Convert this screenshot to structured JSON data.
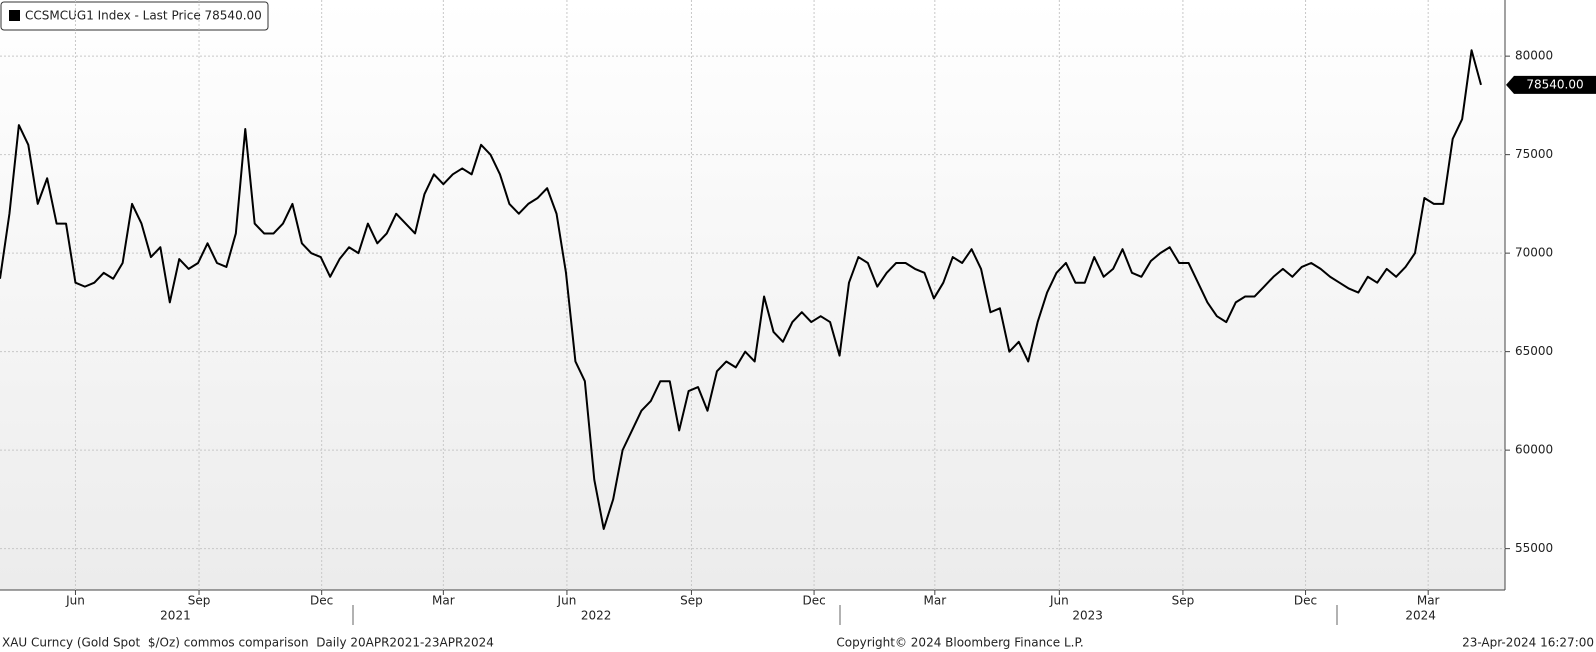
{
  "chart_data": {
    "type": "line",
    "legend_text": "CCSMCUG1 Index - Last Price 78540.00",
    "last_price_label": "78540.00",
    "footer_left": "XAU Curncy (Gold Spot  $/Oz) commos comparison  Daily 20APR2021-23APR2024",
    "footer_center": "Copyright© 2024 Bloomberg Finance L.P.",
    "footer_right": "23-Apr-2024 16:27:00",
    "series": [
      {
        "name": "CCSMCUG1 Index",
        "color": "#000000",
        "values": [
          68700,
          72000,
          76500,
          75500,
          72500,
          73800,
          71500,
          71500,
          68500,
          68300,
          68500,
          69000,
          68700,
          69500,
          72500,
          71500,
          69800,
          70300,
          67500,
          69700,
          69200,
          69500,
          70500,
          69500,
          69300,
          71000,
          76300,
          71500,
          71000,
          71000,
          71500,
          72500,
          70500,
          70000,
          69800,
          68800,
          69700,
          70300,
          70000,
          71500,
          70500,
          71000,
          72000,
          71500,
          71000,
          73000,
          74000,
          73500,
          74000,
          74300,
          74000,
          75500,
          75000,
          74000,
          72500,
          72000,
          72500,
          72800,
          73300,
          72000,
          69000,
          64500,
          63500,
          58500,
          56000,
          57500,
          60000,
          61000,
          62000,
          62500,
          63500,
          63500,
          61000,
          63000,
          63200,
          62000,
          64000,
          64500,
          64200,
          65000,
          64500,
          67800,
          66000,
          65500,
          66500,
          67000,
          66500,
          66800,
          66500,
          64800,
          68500,
          69800,
          69500,
          68300,
          69000,
          69500,
          69500,
          69200,
          69000,
          67700,
          68500,
          69800,
          69500,
          70200,
          69200,
          67000,
          67200,
          65000,
          65500,
          64500,
          66500,
          68000,
          69000,
          69500,
          68500,
          68500,
          69800,
          68800,
          69200,
          70200,
          69000,
          68800,
          69600,
          70000,
          70300,
          69500,
          69500,
          68500,
          67500,
          66800,
          66500,
          67500,
          67800,
          67800,
          68300,
          68800,
          69200,
          68800,
          69300,
          69500,
          69200,
          68800,
          68500,
          68200,
          68000,
          68800,
          68500,
          69200,
          68800,
          69300,
          70000,
          72800,
          72500,
          72500,
          75800,
          76800,
          80300,
          78540
        ]
      }
    ],
    "xlim": [
      0,
      157
    ],
    "xticks": [
      {
        "value": 8,
        "label": "Jun"
      },
      {
        "value": 21.1,
        "label": "Sep"
      },
      {
        "value": 34.1,
        "label": "Dec"
      },
      {
        "value": 47,
        "label": "Mar"
      },
      {
        "value": 60.1,
        "label": "Jun"
      },
      {
        "value": 73.3,
        "label": "Sep"
      },
      {
        "value": 86.3,
        "label": "Dec"
      },
      {
        "value": 99.1,
        "label": "Mar"
      },
      {
        "value": 112.3,
        "label": "Jun"
      },
      {
        "value": 125.4,
        "label": "Sep"
      },
      {
        "value": 138.4,
        "label": "Dec"
      },
      {
        "value": 151.4,
        "label": "Mar"
      }
    ],
    "xgroups": [
      {
        "value": 18.6,
        "label": "2021"
      },
      {
        "value": 63.2,
        "label": "2022"
      },
      {
        "value": 115.3,
        "label": "2023"
      },
      {
        "value": 150.6,
        "label": "2024"
      }
    ],
    "ylim": [
      52900,
      82850
    ],
    "yticks": [
      55000,
      60000,
      65000,
      70000,
      75000,
      80000
    ],
    "grid": true
  }
}
